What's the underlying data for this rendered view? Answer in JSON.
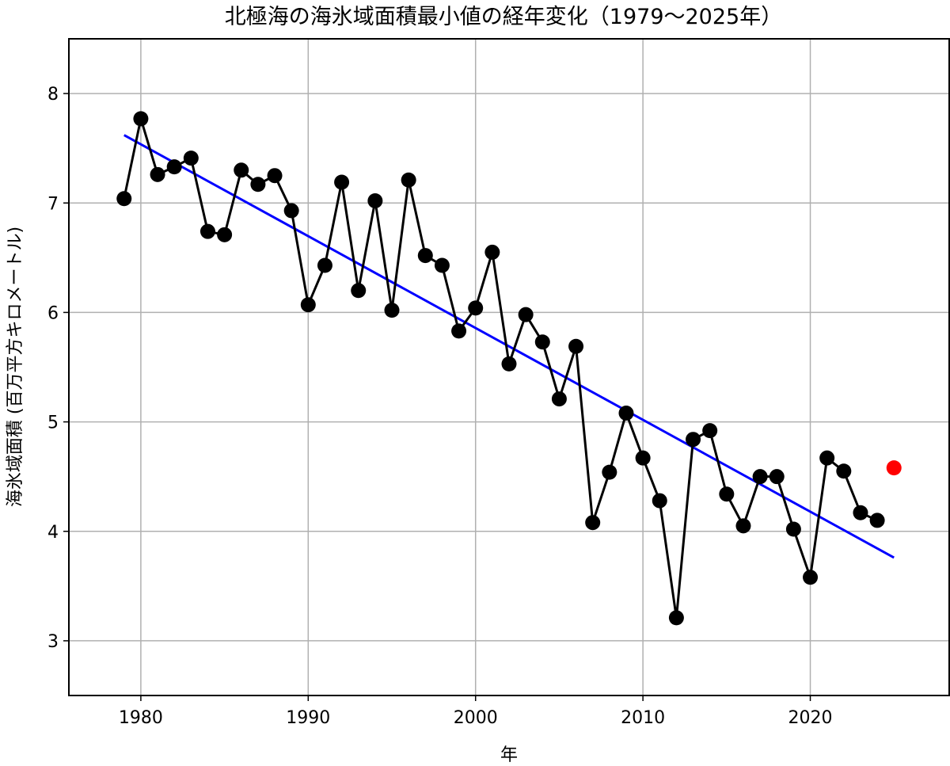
{
  "chart_data": {
    "type": "line",
    "title": "北極海の海氷域面積最小値の経年変化（1979～2025年）",
    "xlabel": "年",
    "ylabel": "海氷域面積 (百万平方キロメートル)",
    "xlim": [
      1975.7,
      2028.3
    ],
    "ylim": [
      2.5,
      8.5
    ],
    "x_ticks": [
      1980,
      1990,
      2000,
      2010,
      2020
    ],
    "y_ticks": [
      3,
      4,
      5,
      6,
      7,
      8
    ],
    "grid": true,
    "series": [
      {
        "color": "#000000",
        "marker": "circle",
        "x": [
          1979,
          1980,
          1981,
          1982,
          1983,
          1984,
          1985,
          1986,
          1987,
          1988,
          1989,
          1990,
          1991,
          1992,
          1993,
          1994,
          1995,
          1996,
          1997,
          1998,
          1999,
          2000,
          2001,
          2002,
          2003,
          2004,
          2005,
          2006,
          2007,
          2008,
          2009,
          2010,
          2011,
          2012,
          2013,
          2014,
          2015,
          2016,
          2017,
          2018,
          2019,
          2020,
          2021,
          2022,
          2023,
          2024
        ],
        "values": [
          7.04,
          7.77,
          7.26,
          7.33,
          7.41,
          6.74,
          6.71,
          7.3,
          7.17,
          7.25,
          6.93,
          6.07,
          6.43,
          7.19,
          6.2,
          7.02,
          6.02,
          7.21,
          6.52,
          6.43,
          5.83,
          6.04,
          6.55,
          5.53,
          5.98,
          5.73,
          5.21,
          5.69,
          4.08,
          4.54,
          5.08,
          4.67,
          4.28,
          3.21,
          4.84,
          4.92,
          4.34,
          4.05,
          4.5,
          4.5,
          4.02,
          3.58,
          4.67,
          4.55,
          4.17,
          4.1
        ]
      },
      {
        "color": "#ff0000",
        "marker": "circle",
        "x": [
          2025
        ],
        "values": [
          4.58
        ]
      },
      {
        "type": "trend",
        "color": "#0000ff",
        "x": [
          1979,
          2025
        ],
        "values": [
          7.62,
          3.76
        ]
      }
    ]
  }
}
